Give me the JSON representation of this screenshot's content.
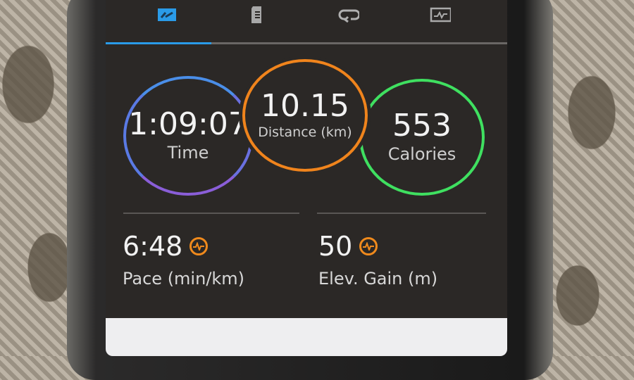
{
  "tabs": [
    {
      "icon": "summary-icon",
      "active": true
    },
    {
      "icon": "details-icon",
      "active": false
    },
    {
      "icon": "laps-icon",
      "active": false
    },
    {
      "icon": "charts-icon",
      "active": false
    }
  ],
  "colors": {
    "accent": "#2a9be8",
    "time_ring": "#7a6ee0",
    "distance_ring": "#f0841c",
    "calories_ring": "#3fe060",
    "badge": "#f08a1c"
  },
  "rings": {
    "time": {
      "value": "1:09:07",
      "label": "Time"
    },
    "distance": {
      "value": "10.15",
      "label": "Distance (km)"
    },
    "calories": {
      "value": "553",
      "label": "Calories"
    }
  },
  "metrics": {
    "pace": {
      "value": "6:48",
      "label": "Pace (min/km)",
      "icon": "performance-icon"
    },
    "elevation": {
      "value": "50",
      "label": "Elev. Gain (m)",
      "icon": "performance-icon"
    }
  }
}
